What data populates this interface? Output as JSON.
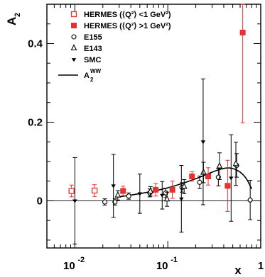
{
  "chart_data": {
    "type": "scatter",
    "title": "",
    "xlabel": "x",
    "ylabel": "A",
    "ylabel_sub": "2",
    "x_scale": "log",
    "xlim": [
      0.005,
      1.0
    ],
    "ylim": [
      -0.12,
      0.5
    ],
    "x_tick_labels": [
      {
        "value": 0.01,
        "base": "10",
        "exp": "-2"
      },
      {
        "value": 0.1,
        "base": "10",
        "exp": "-1"
      },
      {
        "value": 1,
        "base": "1",
        "exp": ""
      }
    ],
    "y_tick_labels": [
      {
        "value": 0.4,
        "label": "0.4"
      },
      {
        "value": 0.2,
        "label": "0.2"
      },
      {
        "value": 0,
        "label": "0"
      }
    ],
    "zero_line": true,
    "legend_position": "top-left",
    "series": [
      {
        "name": "HERMES (⟨Q²⟩ <1 GeV²)",
        "legend_label": "HERMES (⟨Q²⟩ <1 GeV²)",
        "marker": "open-square",
        "color": "#e8302e",
        "points": [
          {
            "x": 0.0092,
            "y": 0.025,
            "err": 0.015
          },
          {
            "x": 0.0163,
            "y": 0.026,
            "err": 0.015
          }
        ]
      },
      {
        "name": "HERMES (⟨Q²⟩ >1 GeV²)",
        "legend_label": "HERMES (⟨Q²⟩ >1 GeV²)",
        "marker": "filled-square",
        "color": "#e8302e",
        "points": [
          {
            "x": 0.033,
            "y": 0.025,
            "err": 0.012
          },
          {
            "x": 0.074,
            "y": 0.028,
            "err": 0.016
          },
          {
            "x": 0.112,
            "y": 0.028,
            "err": 0.022
          },
          {
            "x": 0.182,
            "y": 0.062,
            "err": 0.012
          },
          {
            "x": 0.272,
            "y": 0.062,
            "err": 0.022
          },
          {
            "x": 0.44,
            "y": 0.038,
            "err": 0.065
          },
          {
            "x": 0.64,
            "y": 0.428,
            "err": 0.23
          }
        ]
      },
      {
        "name": "E155",
        "legend_label": "E155",
        "marker": "open-circle",
        "color": "#000000",
        "points": [
          {
            "x": 0.021,
            "y": -0.003,
            "err": 0.008
          },
          {
            "x": 0.027,
            "y": -0.003,
            "err": 0.008
          },
          {
            "x": 0.038,
            "y": 0.012,
            "err": 0.008
          },
          {
            "x": 0.064,
            "y": 0.02,
            "err": 0.01
          },
          {
            "x": 0.095,
            "y": 0.02,
            "err": 0.012
          },
          {
            "x": 0.142,
            "y": 0.034,
            "err": 0.012
          },
          {
            "x": 0.22,
            "y": 0.047,
            "err": 0.016
          },
          {
            "x": 0.35,
            "y": 0.06,
            "err": 0.022
          },
          {
            "x": 0.55,
            "y": 0.09,
            "err": 0.03
          },
          {
            "x": 0.77,
            "y": 0.002,
            "err": 0.05
          }
        ]
      },
      {
        "name": "E143",
        "legend_label": "E143",
        "marker": "open-triangle",
        "color": "#000000",
        "points": [
          {
            "x": 0.029,
            "y": 0.014,
            "err": 0.012
          },
          {
            "x": 0.065,
            "y": 0.024,
            "err": 0.012
          },
          {
            "x": 0.098,
            "y": 0.004,
            "err": 0.018
          },
          {
            "x": 0.15,
            "y": 0.036,
            "err": 0.018
          },
          {
            "x": 0.242,
            "y": 0.072,
            "err": 0.026
          },
          {
            "x": 0.36,
            "y": 0.088,
            "err": 0.034
          },
          {
            "x": 0.54,
            "y": 0.094,
            "err": 0.055
          }
        ]
      },
      {
        "name": "SMC",
        "legend_label": "SMC",
        "marker": "filled-down-triangle",
        "color": "#000000",
        "points": [
          {
            "x": 0.01,
            "y": 0.0,
            "err": 0.11
          },
          {
            "x": 0.026,
            "y": 0.038,
            "err": 0.08
          },
          {
            "x": 0.05,
            "y": 0.018,
            "err": 0.05
          },
          {
            "x": 0.087,
            "y": 0.014,
            "err": 0.035
          },
          {
            "x": 0.14,
            "y": 0.005,
            "err": 0.085
          },
          {
            "x": 0.24,
            "y": 0.15,
            "err": 0.16
          },
          {
            "x": 0.48,
            "y": 0.058,
            "err": 0.11
          }
        ]
      },
      {
        "name": "A2WW",
        "legend_label": "A",
        "legend_sub": "2",
        "legend_sup": "WW",
        "marker": "line",
        "color": "#000000",
        "curve": [
          {
            "x": 0.03,
            "y": 0.01
          },
          {
            "x": 0.05,
            "y": 0.018
          },
          {
            "x": 0.08,
            "y": 0.027
          },
          {
            "x": 0.12,
            "y": 0.038
          },
          {
            "x": 0.18,
            "y": 0.052
          },
          {
            "x": 0.25,
            "y": 0.065
          },
          {
            "x": 0.33,
            "y": 0.077
          },
          {
            "x": 0.42,
            "y": 0.084
          },
          {
            "x": 0.5,
            "y": 0.083
          },
          {
            "x": 0.6,
            "y": 0.074
          },
          {
            "x": 0.7,
            "y": 0.058
          },
          {
            "x": 0.8,
            "y": 0.03
          }
        ]
      }
    ]
  }
}
